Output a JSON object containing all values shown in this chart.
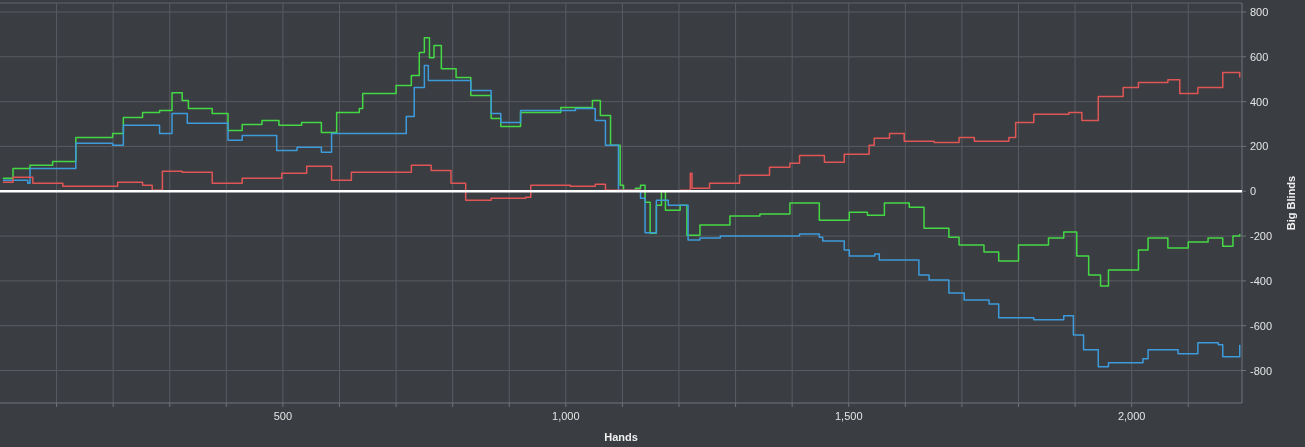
{
  "chart_data": {
    "type": "step",
    "xlabel": "Hands",
    "ylabel": "Big Blinds",
    "xlim": [
      0,
      2195
    ],
    "ylim": [
      -945,
      840
    ],
    "xticks": [
      {
        "value": 100,
        "label": null
      },
      {
        "value": 200,
        "label": null
      },
      {
        "value": 300,
        "label": null
      },
      {
        "value": 400,
        "label": null
      },
      500,
      {
        "value": 600,
        "label": null
      },
      {
        "value": 700,
        "label": null
      },
      {
        "value": 800,
        "label": null
      },
      {
        "value": 900,
        "label": null
      },
      {
        "value": 1000,
        "label": "1,000"
      },
      {
        "value": 1100,
        "label": null
      },
      {
        "value": 1200,
        "label": null
      },
      {
        "value": 1300,
        "label": null
      },
      {
        "value": 1400,
        "label": null
      },
      {
        "value": 1500,
        "label": "1,500"
      },
      {
        "value": 1600,
        "label": null
      },
      {
        "value": 1700,
        "label": null
      },
      {
        "value": 1800,
        "label": null
      },
      {
        "value": 1900,
        "label": null
      },
      {
        "value": 2000,
        "label": "2,000"
      },
      {
        "value": 2100,
        "label": null
      }
    ],
    "yticks": [
      -800,
      -600,
      -400,
      -200,
      0,
      200,
      400,
      600,
      800
    ],
    "grid": true,
    "ref_lines": [
      {
        "axis": "y",
        "value": 0,
        "color": "#ffffff"
      }
    ],
    "series": [
      {
        "color": "#44d944",
        "x": [
          5,
          23,
          53,
          93,
          134,
          199,
          218,
          252,
          282,
          304,
          322,
          333,
          375,
          403,
          428,
          463,
          493,
          533,
          568,
          595,
          635,
          641,
          700,
          727,
          741,
          750,
          759,
          767,
          780,
          806,
          832,
          868,
          885,
          920,
          991,
          1047,
          1061,
          1079,
          1096,
          1102,
          1123,
          1132,
          1140,
          1149,
          1160,
          1169,
          1176,
          1202,
          1214,
          1237,
          1290,
          1343,
          1396,
          1448,
          1501,
          1533,
          1563,
          1607,
          1633,
          1677,
          1695,
          1739,
          1765,
          1800,
          1853,
          1880,
          1903,
          1924,
          1945,
          1959,
          2012,
          2029,
          2064,
          2100,
          2135,
          2161,
          2179,
          2191
        ],
        "values": [
          58,
          102,
          116,
          133,
          240,
          258,
          329,
          351,
          360,
          440,
          405,
          369,
          347,
          271,
          298,
          316,
          294,
          307,
          262,
          351,
          369,
          436,
          472,
          516,
          619,
          685,
          596,
          650,
          547,
          507,
          427,
          325,
          289,
          351,
          374,
          405,
          338,
          205,
          27,
          0,
          13,
          27,
          -49,
          -187,
          -62,
          0,
          -85,
          -62,
          -196,
          -151,
          -111,
          -102,
          -53,
          -129,
          -94,
          -107,
          -53,
          -71,
          -165,
          -205,
          -240,
          -271,
          -311,
          -240,
          -209,
          -182,
          -289,
          -374,
          -423,
          -351,
          -262,
          -209,
          -253,
          -227,
          -209,
          -245,
          -200,
          -191
        ]
      },
      {
        "color": "#3d9bdc",
        "x": [
          5,
          49,
          53,
          134,
          199,
          218,
          282,
          304,
          331,
          403,
          428,
          489,
          525,
          568,
          586,
          639,
          718,
          732,
          750,
          757,
          815,
          832,
          868,
          885,
          920,
          1017,
          1052,
          1070,
          1093,
          1132,
          1140,
          1160,
          1181,
          1216,
          1237,
          1273,
          1343,
          1413,
          1448,
          1454,
          1492,
          1501,
          1546,
          1554,
          1607,
          1624,
          1642,
          1677,
          1704,
          1748,
          1765,
          1827,
          1880,
          1897,
          1915,
          1941,
          1959,
          2020,
          2029,
          2082,
          2117,
          2153,
          2161,
          2191
        ],
        "values": [
          49,
          36,
          102,
          214,
          205,
          294,
          258,
          347,
          303,
          227,
          249,
          182,
          196,
          174,
          258,
          258,
          334,
          463,
          561,
          494,
          494,
          449,
          347,
          307,
          360,
          369,
          316,
          205,
          4,
          -31,
          -185,
          -40,
          -62,
          -218,
          -209,
          -200,
          -200,
          -191,
          -205,
          -222,
          -262,
          -289,
          -280,
          -307,
          -307,
          -374,
          -396,
          -454,
          -485,
          -503,
          -565,
          -574,
          -556,
          -641,
          -707,
          -783,
          -765,
          -748,
          -707,
          -725,
          -676,
          -685,
          -739,
          -685
        ]
      },
      {
        "color": "#e05555",
        "x": [
          5,
          23,
          58,
          111,
          181,
          208,
          252,
          269,
          287,
          322,
          375,
          428,
          498,
          542,
          586,
          621,
          674,
          727,
          762,
          797,
          823,
          868,
          929,
          938,
          1008,
          1052,
          1070,
          1132,
          1202,
          1220,
          1223,
          1254,
          1307,
          1360,
          1396,
          1413,
          1457,
          1492,
          1536,
          1545,
          1572,
          1598,
          1651,
          1695,
          1722,
          1783,
          1795,
          1827,
          1889,
          1912,
          1941,
          1985,
          2012,
          2064,
          2085,
          2117,
          2143,
          2161,
          2191
        ],
        "values": [
          40,
          62,
          36,
          22,
          22,
          40,
          27,
          4,
          89,
          85,
          36,
          58,
          80,
          111,
          49,
          85,
          85,
          116,
          93,
          36,
          -40,
          -31,
          -27,
          27,
          22,
          31,
          4,
          0,
          4,
          80,
          13,
          36,
          71,
          107,
          125,
          160,
          129,
          165,
          205,
          236,
          258,
          223,
          218,
          240,
          223,
          240,
          307,
          343,
          351,
          316,
          423,
          463,
          485,
          498,
          436,
          463,
          463,
          530,
          507
        ]
      }
    ]
  }
}
